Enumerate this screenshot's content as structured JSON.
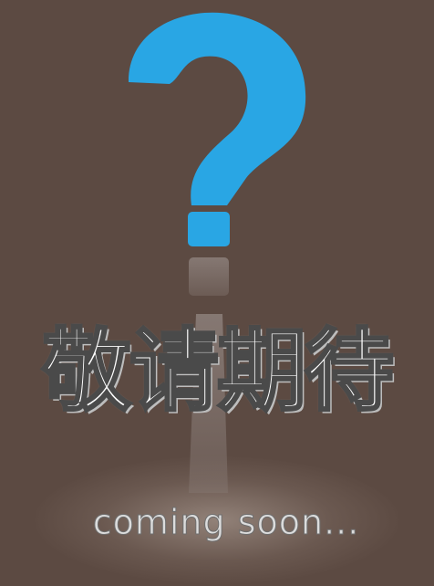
{
  "title": "敬请期待",
  "subtitle": "coming soon...",
  "icon": "question-mark-icon",
  "colors": {
    "background": "#5c4a42",
    "accent": "#29a6e4",
    "title_text": "#ffffff"
  }
}
